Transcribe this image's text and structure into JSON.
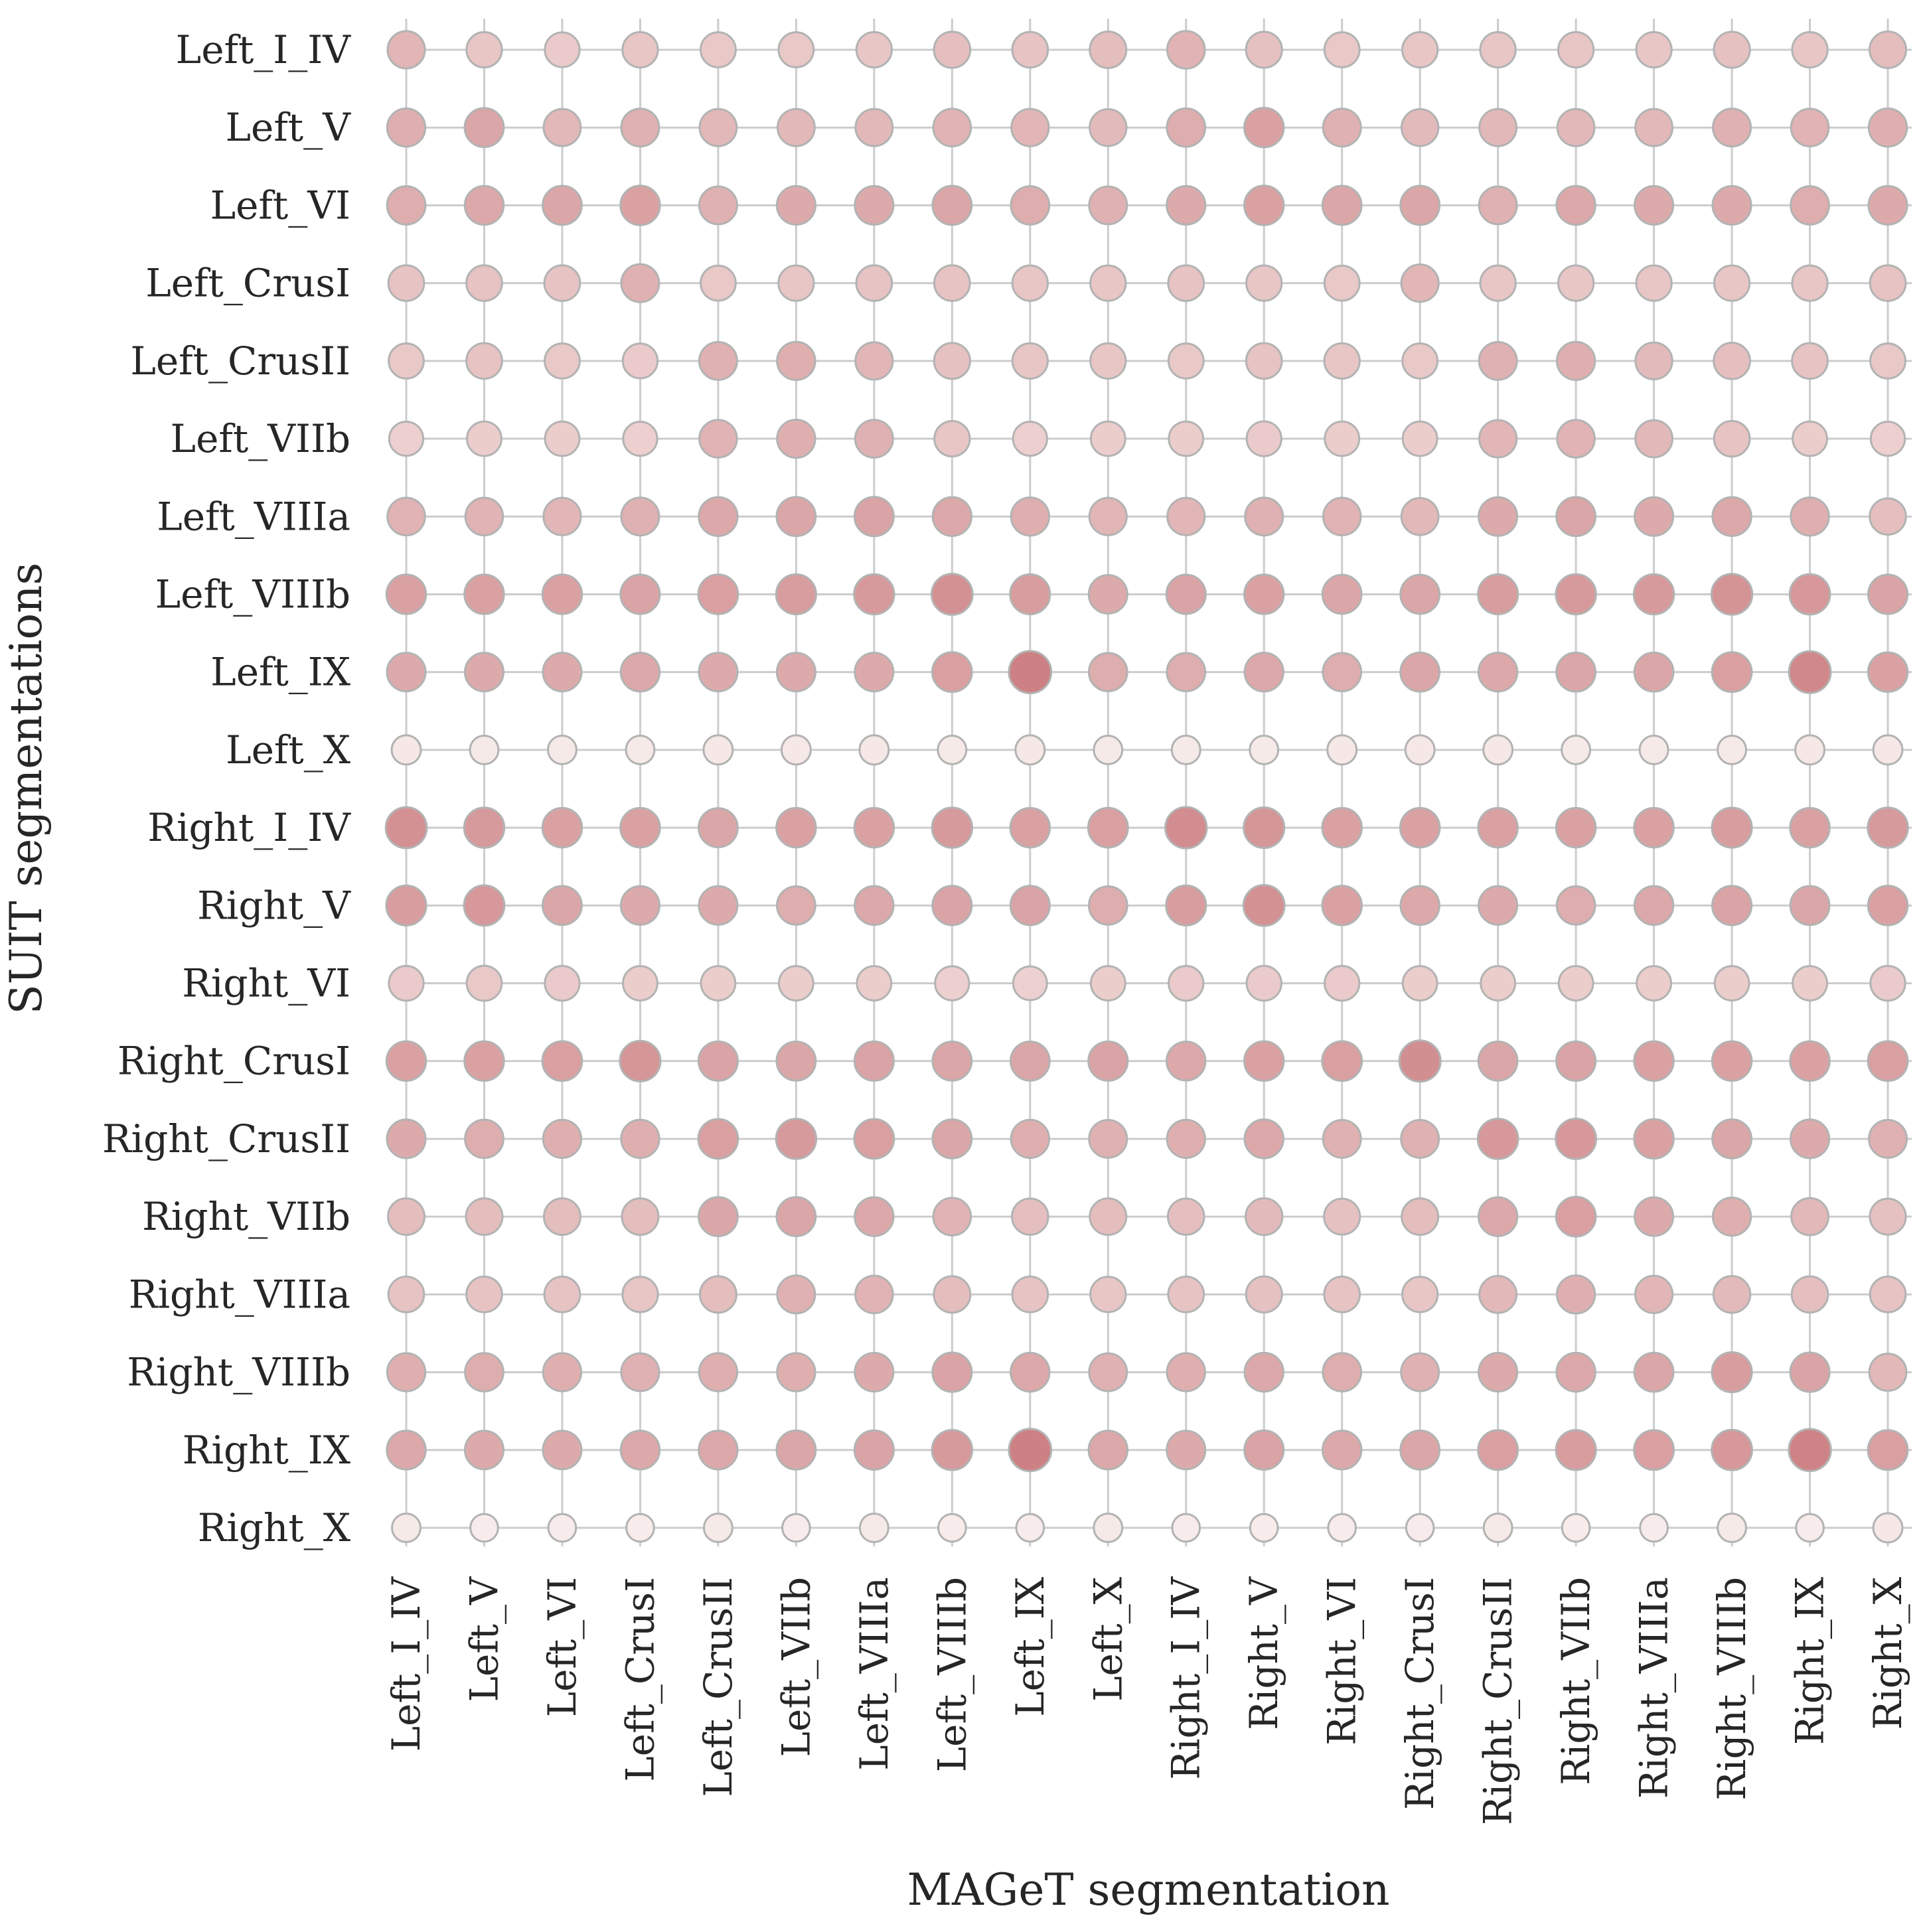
{
  "chart_data": {
    "type": "scatter",
    "subtype": "dot-matrix (marker size and color encode value)",
    "xlabel": "MAGeT segmentation",
    "ylabel": "SUIT segmentations",
    "x_categories": [
      "Left_I_IV",
      "Left_V",
      "Left_VI",
      "Left_CrusI",
      "Left_CrusII",
      "Left_VIIb",
      "Left_VIIIa",
      "Left_VIIIb",
      "Left_IX",
      "Left_X",
      "Right_I_IV",
      "Right_V",
      "Right_VI",
      "Right_CrusI",
      "Right_CrusII",
      "Right_VIIb",
      "Right_VIIIa",
      "Right_VIIIb",
      "Right_IX",
      "Right_X"
    ],
    "y_categories": [
      "Left_I_IV",
      "Left_V",
      "Left_VI",
      "Left_CrusI",
      "Left_CrusII",
      "Left_VIIb",
      "Left_VIIIa",
      "Left_VIIIb",
      "Left_IX",
      "Left_X",
      "Right_I_IV",
      "Right_V",
      "Right_VI",
      "Right_CrusI",
      "Right_CrusII",
      "Right_VIIb",
      "Right_VIIIa",
      "Right_VIIIb",
      "Right_IX",
      "Right_X"
    ],
    "value_scale": "relative intensity 0-1 (no colorbar shown)",
    "values": [
      [
        0.52,
        0.38,
        0.34,
        0.38,
        0.36,
        0.36,
        0.38,
        0.44,
        0.4,
        0.46,
        0.54,
        0.42,
        0.36,
        0.38,
        0.38,
        0.38,
        0.38,
        0.42,
        0.38,
        0.46
      ],
      [
        0.58,
        0.66,
        0.5,
        0.56,
        0.5,
        0.5,
        0.5,
        0.54,
        0.52,
        0.48,
        0.6,
        0.7,
        0.56,
        0.48,
        0.5,
        0.5,
        0.5,
        0.56,
        0.54,
        0.58
      ],
      [
        0.6,
        0.64,
        0.66,
        0.7,
        0.56,
        0.62,
        0.62,
        0.66,
        0.6,
        0.56,
        0.62,
        0.7,
        0.66,
        0.66,
        0.56,
        0.64,
        0.62,
        0.62,
        0.6,
        0.62
      ],
      [
        0.4,
        0.4,
        0.4,
        0.56,
        0.36,
        0.38,
        0.4,
        0.4,
        0.38,
        0.38,
        0.4,
        0.38,
        0.36,
        0.52,
        0.38,
        0.38,
        0.38,
        0.38,
        0.38,
        0.4
      ],
      [
        0.36,
        0.4,
        0.36,
        0.34,
        0.56,
        0.58,
        0.52,
        0.42,
        0.38,
        0.38,
        0.36,
        0.4,
        0.38,
        0.36,
        0.56,
        0.58,
        0.48,
        0.44,
        0.4,
        0.36
      ],
      [
        0.3,
        0.32,
        0.32,
        0.3,
        0.54,
        0.58,
        0.56,
        0.38,
        0.3,
        0.32,
        0.32,
        0.34,
        0.32,
        0.32,
        0.52,
        0.54,
        0.5,
        0.4,
        0.32,
        0.3
      ],
      [
        0.54,
        0.54,
        0.52,
        0.56,
        0.64,
        0.66,
        0.68,
        0.64,
        0.58,
        0.52,
        0.52,
        0.56,
        0.54,
        0.5,
        0.62,
        0.66,
        0.62,
        0.64,
        0.58,
        0.44
      ],
      [
        0.7,
        0.7,
        0.7,
        0.68,
        0.72,
        0.74,
        0.76,
        0.84,
        0.74,
        0.62,
        0.68,
        0.7,
        0.66,
        0.66,
        0.74,
        0.76,
        0.76,
        0.82,
        0.78,
        0.68
      ],
      [
        0.62,
        0.62,
        0.62,
        0.64,
        0.62,
        0.62,
        0.62,
        0.72,
        0.98,
        0.6,
        0.6,
        0.64,
        0.6,
        0.66,
        0.64,
        0.66,
        0.66,
        0.72,
        0.92,
        0.7
      ],
      [
        0.08,
        0.06,
        0.06,
        0.06,
        0.08,
        0.08,
        0.08,
        0.06,
        0.08,
        0.06,
        0.06,
        0.06,
        0.08,
        0.08,
        0.08,
        0.06,
        0.06,
        0.06,
        0.08,
        0.08
      ],
      [
        0.84,
        0.76,
        0.7,
        0.7,
        0.66,
        0.7,
        0.7,
        0.76,
        0.7,
        0.72,
        0.88,
        0.8,
        0.7,
        0.7,
        0.7,
        0.7,
        0.7,
        0.74,
        0.7,
        0.76
      ],
      [
        0.74,
        0.78,
        0.66,
        0.62,
        0.62,
        0.6,
        0.64,
        0.68,
        0.68,
        0.6,
        0.74,
        0.84,
        0.7,
        0.64,
        0.62,
        0.6,
        0.64,
        0.68,
        0.66,
        0.7
      ],
      [
        0.34,
        0.36,
        0.34,
        0.32,
        0.32,
        0.32,
        0.32,
        0.3,
        0.28,
        0.32,
        0.34,
        0.34,
        0.34,
        0.32,
        0.32,
        0.32,
        0.32,
        0.32,
        0.32,
        0.34
      ],
      [
        0.7,
        0.7,
        0.72,
        0.8,
        0.68,
        0.66,
        0.68,
        0.66,
        0.66,
        0.68,
        0.64,
        0.7,
        0.72,
        0.86,
        0.66,
        0.68,
        0.7,
        0.7,
        0.7,
        0.72
      ],
      [
        0.62,
        0.6,
        0.58,
        0.58,
        0.72,
        0.76,
        0.72,
        0.66,
        0.58,
        0.56,
        0.58,
        0.64,
        0.56,
        0.56,
        0.78,
        0.78,
        0.7,
        0.66,
        0.62,
        0.56
      ],
      [
        0.46,
        0.46,
        0.46,
        0.46,
        0.66,
        0.66,
        0.64,
        0.54,
        0.44,
        0.46,
        0.44,
        0.48,
        0.42,
        0.46,
        0.64,
        0.72,
        0.62,
        0.58,
        0.5,
        0.42
      ],
      [
        0.4,
        0.4,
        0.4,
        0.38,
        0.46,
        0.56,
        0.54,
        0.46,
        0.4,
        0.38,
        0.4,
        0.42,
        0.4,
        0.38,
        0.5,
        0.58,
        0.52,
        0.48,
        0.44,
        0.4
      ],
      [
        0.58,
        0.6,
        0.58,
        0.56,
        0.58,
        0.58,
        0.62,
        0.68,
        0.64,
        0.56,
        0.58,
        0.64,
        0.6,
        0.56,
        0.62,
        0.64,
        0.66,
        0.74,
        0.68,
        0.5
      ],
      [
        0.64,
        0.62,
        0.62,
        0.64,
        0.64,
        0.66,
        0.68,
        0.76,
        0.98,
        0.64,
        0.62,
        0.68,
        0.64,
        0.66,
        0.72,
        0.74,
        0.72,
        0.78,
        0.96,
        0.72
      ],
      [
        0.06,
        0.04,
        0.04,
        0.04,
        0.06,
        0.04,
        0.06,
        0.04,
        0.04,
        0.06,
        0.04,
        0.04,
        0.04,
        0.04,
        0.06,
        0.04,
        0.04,
        0.06,
        0.04,
        0.08
      ]
    ],
    "color_low": "#f9f1ef",
    "color_high": "#cc7f82",
    "marker_edge_color": "#b3b3b3",
    "grid": true,
    "grid_color": "#cccccc",
    "legend": "none"
  }
}
